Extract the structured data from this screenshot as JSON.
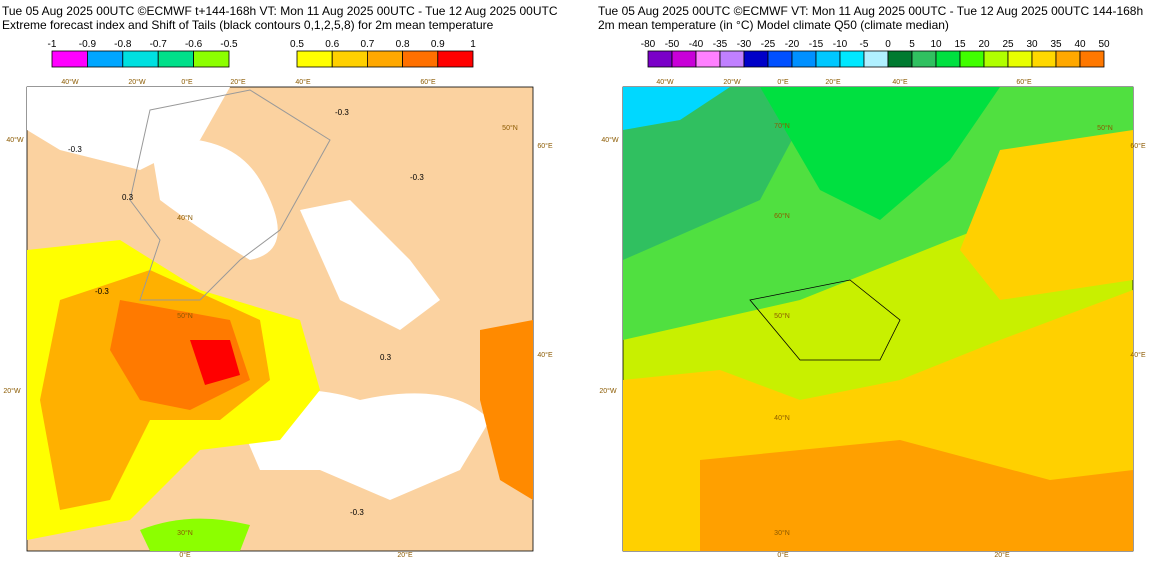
{
  "panels": [
    {
      "title_line1": "Tue 05 Aug 2025 00UTC ©ECMWF t+144-168h  VT: Mon 11 Aug 2025 00UTC - Tue 12 Aug 2025 00UTC",
      "title_line2": "Extreme forecast index and Shift of Tails (black contours 0,1,2,5,8) for 2m mean temperature",
      "colorbars": [
        {
          "labels": [
            -1,
            -0.9,
            -0.8,
            -0.7,
            -0.6,
            -0.5
          ],
          "colors": [
            "#ff00ff",
            "#00a6ff",
            "#00e0e0",
            "#00e08a",
            "#8cff00"
          ]
        },
        {
          "labels": [
            0.5,
            0.6,
            0.7,
            0.8,
            0.9,
            1
          ],
          "colors": [
            "#ffff00",
            "#ffd000",
            "#ffa800",
            "#ff7000",
            "#ff0000"
          ]
        }
      ],
      "geo_labels": [
        "40°W",
        "20°W",
        "0°E",
        "20°E",
        "40°E",
        "60°E",
        "40°W",
        "60°E",
        "20°W",
        "40°E",
        "50°N",
        "40°N",
        "50°N",
        "30°N",
        "0°E",
        "20°E"
      ],
      "contour_labels": [
        "-0.3",
        "-0.3",
        "0.3",
        "-0.3",
        "-0.3",
        "0.3",
        "-0.3"
      ]
    },
    {
      "title_line1": "Tue 05 Aug 2025 00UTC ©ECMWF VT: Mon 11 Aug 2025 00UTC - Tue 12 Aug 2025 00UTC   144-168h",
      "title_line2": "2m mean temperature (in °C)  Model climate Q50 (climate median)",
      "colorbars": [
        {
          "labels": [
            -80,
            -50,
            -40,
            -35,
            -30,
            -25,
            -20,
            -15,
            -10,
            -5,
            0,
            5,
            10,
            15,
            20,
            25,
            30,
            35,
            40,
            50
          ],
          "colors": [
            "#7a00c8",
            "#c800d8",
            "#ff80ff",
            "#c080ff",
            "#0000c8",
            "#0050ff",
            "#0090ff",
            "#00c8ff",
            "#00e8ff",
            "#b0f0ff",
            "#007a30",
            "#30c060",
            "#00e040",
            "#40ff00",
            "#b0ff00",
            "#e8ff00",
            "#ffd800",
            "#ffa800",
            "#ff7800"
          ]
        }
      ],
      "geo_labels": [
        "40°W",
        "20°W",
        "0°E",
        "20°E",
        "40°E",
        "60°E",
        "40°W",
        "60°E",
        "20°W",
        "40°E",
        "70°N",
        "60°N",
        "50°N",
        "40°N",
        "50°N",
        "30°N",
        "0°E",
        "20°E"
      ]
    }
  ]
}
